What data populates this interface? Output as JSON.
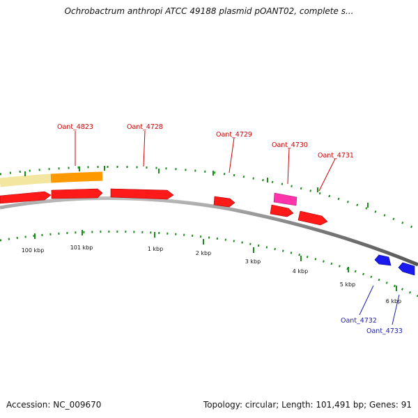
{
  "title": "Ochrobactrum anthropi ATCC 49188 plasmid pOANT02, complete s...",
  "footer": {
    "accession_label": "Accession: NC_009670",
    "summary_label": "Topology: circular; Length: 101,491 bp; Genes: 91"
  },
  "colors": {
    "backbone": "#888888",
    "ticks": "#1a8a1a",
    "forward_gene": "#ff1a1a",
    "highlight_gene": "#ff33aa",
    "reverse_gene": "#1a1aee",
    "label_forward": "#cc0000",
    "label_reverse": "#1a1aaa",
    "band_pale": "#f2e6a0",
    "band_orange": "#ff9900"
  },
  "scale_labels": [
    "100 kbp",
    "101 kbp",
    "1 kbp",
    "2 kbp",
    "3 kbp",
    "4 kbp",
    "5 kbp",
    "6 kbp"
  ],
  "gene_labels": [
    {
      "name": "Oant_4823",
      "strand": "forward"
    },
    {
      "name": "Oant_4728",
      "strand": "forward"
    },
    {
      "name": "Oant_4729",
      "strand": "forward"
    },
    {
      "name": "Oant_4730",
      "strand": "forward"
    },
    {
      "name": "Oant_4731",
      "strand": "forward"
    },
    {
      "name": "Oant_4732",
      "strand": "reverse"
    },
    {
      "name": "Oant_4733",
      "strand": "reverse"
    }
  ]
}
